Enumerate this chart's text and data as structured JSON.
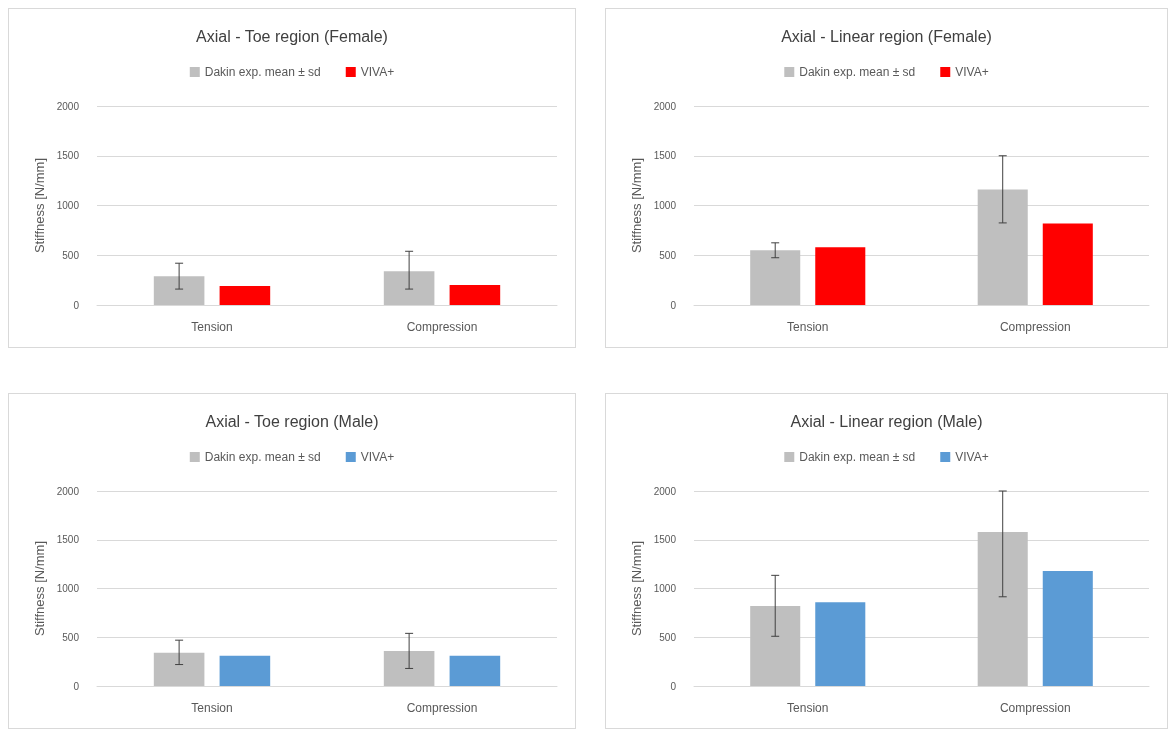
{
  "chart_data": [
    {
      "type": "bar",
      "title": "Axial - Toe region (Female)",
      "ylabel": "Stiffness [N/mm]",
      "categories": [
        "Tension",
        "Compression"
      ],
      "ylim": [
        0,
        2000
      ],
      "yticks": [
        0,
        500,
        1000,
        1500,
        2000
      ],
      "grid": "y",
      "legend": "top",
      "series": [
        {
          "name": "Dakin exp. mean ± sd",
          "color": "#bfbfbf",
          "values": [
            290,
            340
          ],
          "errors": [
            [
              160,
              420
            ],
            [
              160,
              540
            ]
          ]
        },
        {
          "name": "VIVA+",
          "color": "#ff0000",
          "values": [
            190,
            200
          ]
        }
      ]
    },
    {
      "type": "bar",
      "title": "Axial - Linear region (Female)",
      "ylabel": "Stiffness [N/mm]",
      "categories": [
        "Tension",
        "Compression"
      ],
      "ylim": [
        0,
        2000
      ],
      "yticks": [
        0,
        500,
        1000,
        1500,
        2000
      ],
      "grid": "y",
      "legend": "top",
      "series": [
        {
          "name": "Dakin exp. mean ± sd",
          "color": "#bfbfbf",
          "values": [
            550,
            1160
          ],
          "errors": [
            [
              475,
              625
            ],
            [
              825,
              1500
            ]
          ]
        },
        {
          "name": "VIVA+",
          "color": "#ff0000",
          "values": [
            580,
            820
          ]
        }
      ]
    },
    {
      "type": "bar",
      "title": "Axial - Toe region (Male)",
      "ylabel": "Stiffness [N/mm]",
      "categories": [
        "Tension",
        "Compression"
      ],
      "ylim": [
        0,
        2000
      ],
      "yticks": [
        0,
        500,
        1000,
        1500,
        2000
      ],
      "grid": "y",
      "legend": "top",
      "series": [
        {
          "name": "Dakin exp. mean ± sd",
          "color": "#bfbfbf",
          "values": [
            340,
            360
          ],
          "errors": [
            [
              220,
              470
            ],
            [
              180,
              540
            ]
          ]
        },
        {
          "name": "VIVA+",
          "color": "#5b9bd5",
          "values": [
            310,
            310
          ]
        }
      ]
    },
    {
      "type": "bar",
      "title": "Axial - Linear region (Male)",
      "ylabel": "Stiffness [N/mm]",
      "categories": [
        "Tension",
        "Compression"
      ],
      "ylim": [
        0,
        2000
      ],
      "yticks": [
        0,
        500,
        1000,
        1500,
        2000
      ],
      "grid": "y",
      "legend": "top",
      "series": [
        {
          "name": "Dakin exp. mean ± sd",
          "color": "#bfbfbf",
          "values": [
            820,
            1580
          ],
          "errors": [
            [
              510,
              1135
            ],
            [
              915,
              2000
            ]
          ]
        },
        {
          "name": "VIVA+",
          "color": "#5b9bd5",
          "values": [
            860,
            1180
          ]
        }
      ]
    }
  ]
}
